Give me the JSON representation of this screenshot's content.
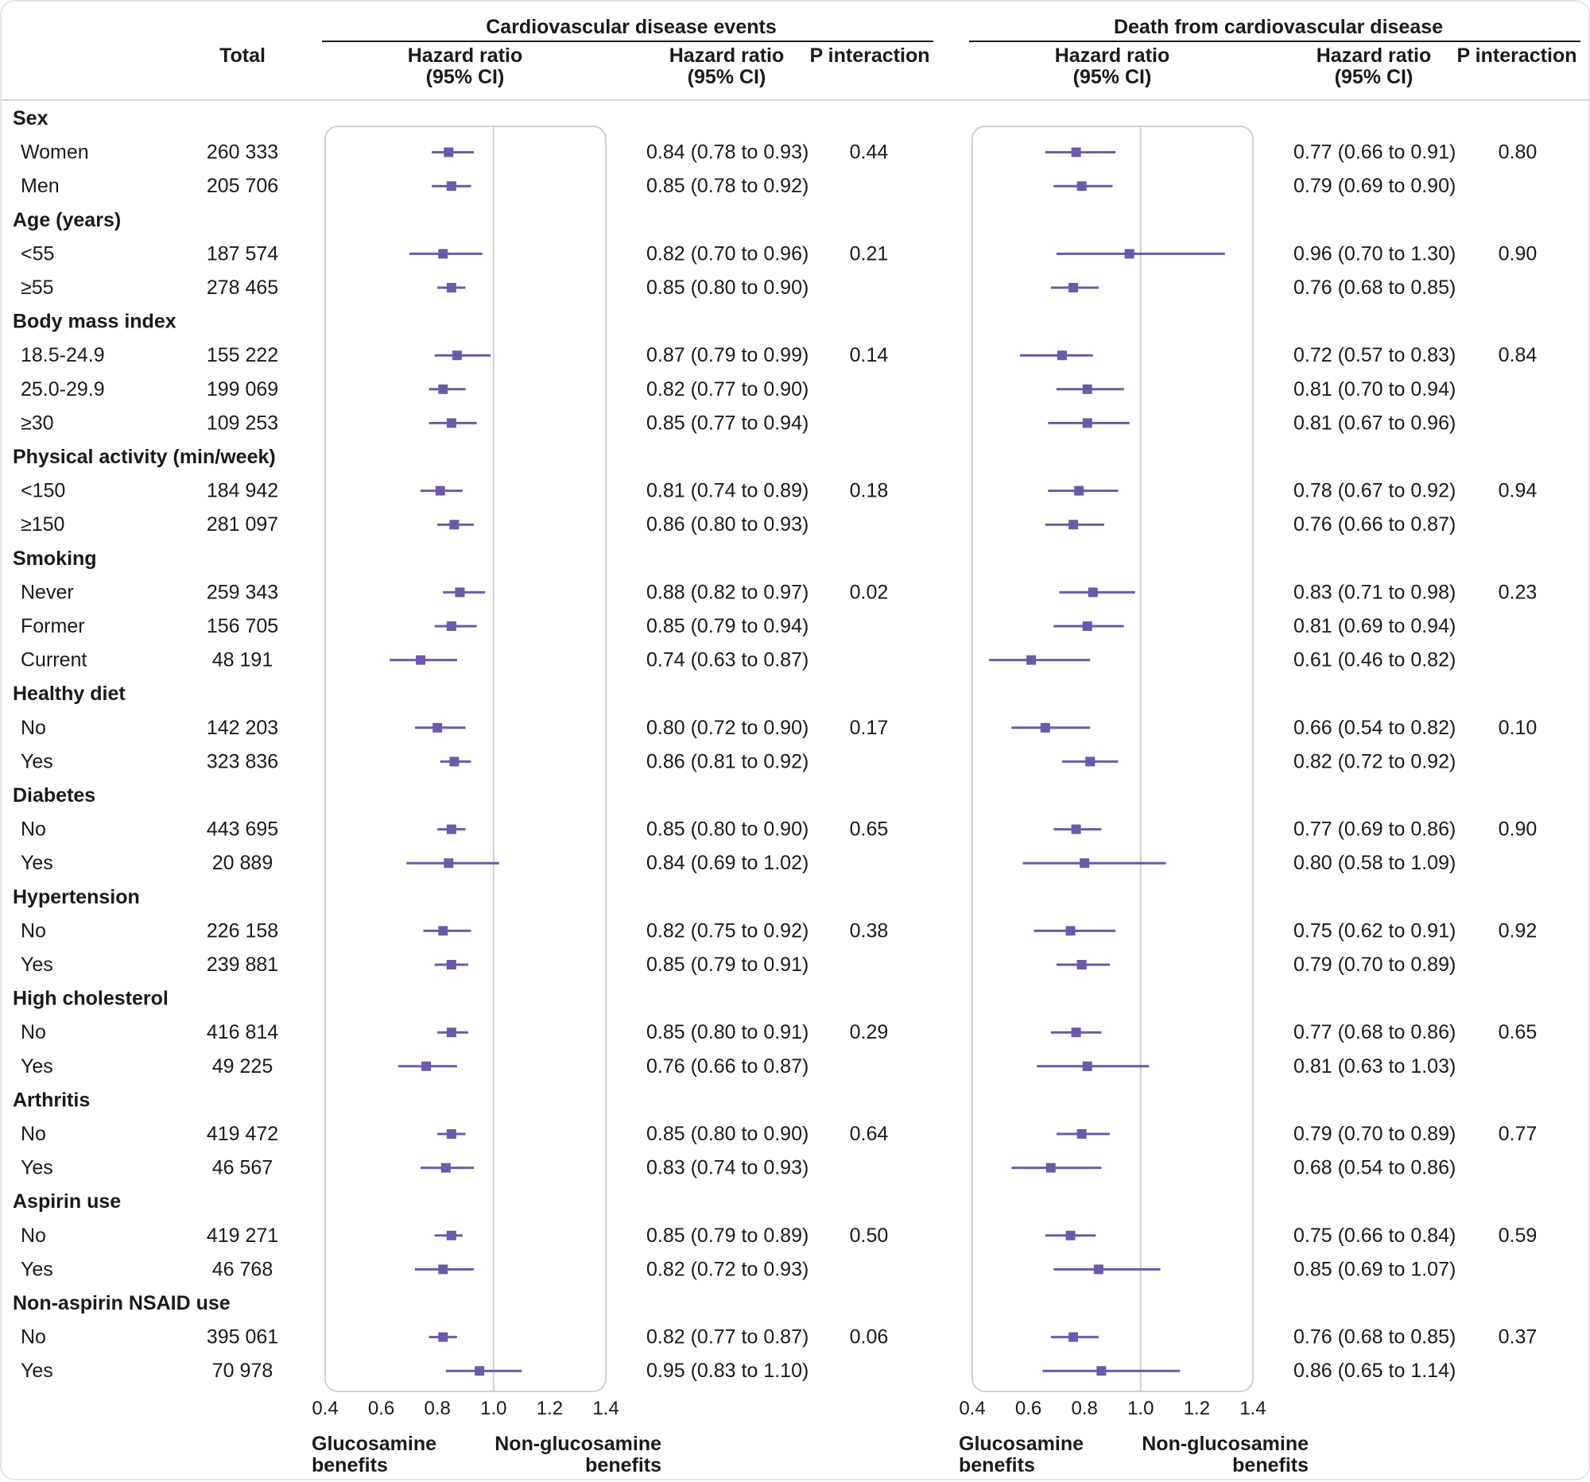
{
  "headers": {
    "total": "Total",
    "hr_plot_label": [
      "Hazard ratio",
      "(95% CI)"
    ],
    "hr_text_label": [
      "Hazard ratio",
      "(95% CI)"
    ],
    "p_label": "P interaction"
  },
  "x_axis_ticks": [
    "0.4",
    "0.6",
    "0.8",
    "1.0",
    "1.2",
    "1.4"
  ],
  "benefit_labels": {
    "left": [
      "Glucosamine",
      "benefits"
    ],
    "right": [
      "Non-glucosamine",
      "benefits"
    ]
  },
  "chart_data": [
    {
      "type": "forest",
      "title": "Cardiovascular disease events",
      "xlim": [
        0.4,
        1.4
      ],
      "reference_line": 1.0,
      "point_color": "#6c5aa8",
      "groups": [
        {
          "name": "Sex",
          "rows": [
            {
              "label": "Women",
              "total": "260 333",
              "hr": 0.84,
              "lo": 0.78,
              "hi": 0.93,
              "text": "0.84 (0.78 to 0.93)",
              "p": "0.44"
            },
            {
              "label": "Men",
              "total": "205 706",
              "hr": 0.85,
              "lo": 0.78,
              "hi": 0.92,
              "text": "0.85 (0.78 to 0.92)",
              "p": ""
            }
          ]
        },
        {
          "name": "Age (years)",
          "rows": [
            {
              "label": "<55",
              "total": "187 574",
              "hr": 0.82,
              "lo": 0.7,
              "hi": 0.96,
              "text": "0.82 (0.70 to 0.96)",
              "p": "0.21"
            },
            {
              "label": "≥55",
              "total": "278 465",
              "hr": 0.85,
              "lo": 0.8,
              "hi": 0.9,
              "text": "0.85 (0.80 to 0.90)",
              "p": ""
            }
          ]
        },
        {
          "name": "Body mass index",
          "rows": [
            {
              "label": "18.5-24.9",
              "total": "155 222",
              "hr": 0.87,
              "lo": 0.79,
              "hi": 0.99,
              "text": "0.87 (0.79 to 0.99)",
              "p": "0.14"
            },
            {
              "label": "25.0-29.9",
              "total": "199 069",
              "hr": 0.82,
              "lo": 0.77,
              "hi": 0.9,
              "text": "0.82 (0.77 to 0.90)",
              "p": ""
            },
            {
              "label": "≥30",
              "total": "109 253",
              "hr": 0.85,
              "lo": 0.77,
              "hi": 0.94,
              "text": "0.85 (0.77 to 0.94)",
              "p": ""
            }
          ]
        },
        {
          "name": "Physical activity (min/week)",
          "rows": [
            {
              "label": "<150",
              "total": "184 942",
              "hr": 0.81,
              "lo": 0.74,
              "hi": 0.89,
              "text": "0.81 (0.74 to 0.89)",
              "p": "0.18"
            },
            {
              "label": "≥150",
              "total": "281 097",
              "hr": 0.86,
              "lo": 0.8,
              "hi": 0.93,
              "text": "0.86 (0.80 to 0.93)",
              "p": ""
            }
          ]
        },
        {
          "name": "Smoking",
          "rows": [
            {
              "label": "Never",
              "total": "259 343",
              "hr": 0.88,
              "lo": 0.82,
              "hi": 0.97,
              "text": "0.88 (0.82 to 0.97)",
              "p": "0.02"
            },
            {
              "label": "Former",
              "total": "156 705",
              "hr": 0.85,
              "lo": 0.79,
              "hi": 0.94,
              "text": "0.85 (0.79 to 0.94)",
              "p": ""
            },
            {
              "label": "Current",
              "total": "48 191",
              "hr": 0.74,
              "lo": 0.63,
              "hi": 0.87,
              "text": "0.74 (0.63 to 0.87)",
              "p": ""
            }
          ]
        },
        {
          "name": "Healthy diet",
          "rows": [
            {
              "label": "No",
              "total": "142 203",
              "hr": 0.8,
              "lo": 0.72,
              "hi": 0.9,
              "text": "0.80 (0.72 to 0.90)",
              "p": "0.17"
            },
            {
              "label": "Yes",
              "total": "323 836",
              "hr": 0.86,
              "lo": 0.81,
              "hi": 0.92,
              "text": "0.86 (0.81 to 0.92)",
              "p": ""
            }
          ]
        },
        {
          "name": "Diabetes",
          "rows": [
            {
              "label": "No",
              "total": "443 695",
              "hr": 0.85,
              "lo": 0.8,
              "hi": 0.9,
              "text": "0.85 (0.80 to 0.90)",
              "p": "0.65"
            },
            {
              "label": "Yes",
              "total": "20 889",
              "hr": 0.84,
              "lo": 0.69,
              "hi": 1.02,
              "text": "0.84 (0.69 to 1.02)",
              "p": ""
            }
          ]
        },
        {
          "name": "Hypertension",
          "rows": [
            {
              "label": "No",
              "total": "226 158",
              "hr": 0.82,
              "lo": 0.75,
              "hi": 0.92,
              "text": "0.82 (0.75 to 0.92)",
              "p": "0.38"
            },
            {
              "label": "Yes",
              "total": "239 881",
              "hr": 0.85,
              "lo": 0.79,
              "hi": 0.91,
              "text": "0.85 (0.79 to 0.91)",
              "p": ""
            }
          ]
        },
        {
          "name": "High cholesterol",
          "rows": [
            {
              "label": "No",
              "total": "416 814",
              "hr": 0.85,
              "lo": 0.8,
              "hi": 0.91,
              "text": "0.85 (0.80 to 0.91)",
              "p": "0.29"
            },
            {
              "label": "Yes",
              "total": "49 225",
              "hr": 0.76,
              "lo": 0.66,
              "hi": 0.87,
              "text": "0.76 (0.66 to 0.87)",
              "p": ""
            }
          ]
        },
        {
          "name": "Arthritis",
          "rows": [
            {
              "label": "No",
              "total": "419 472",
              "hr": 0.85,
              "lo": 0.8,
              "hi": 0.9,
              "text": "0.85 (0.80 to 0.90)",
              "p": "0.64"
            },
            {
              "label": "Yes",
              "total": "46 567",
              "hr": 0.83,
              "lo": 0.74,
              "hi": 0.93,
              "text": "0.83 (0.74 to 0.93)",
              "p": ""
            }
          ]
        },
        {
          "name": "Aspirin use",
          "rows": [
            {
              "label": "No",
              "total": "419 271",
              "hr": 0.85,
              "lo": 0.79,
              "hi": 0.89,
              "text": "0.85 (0.79 to 0.89)",
              "p": "0.50"
            },
            {
              "label": "Yes",
              "total": "46 768",
              "hr": 0.82,
              "lo": 0.72,
              "hi": 0.93,
              "text": "0.82 (0.72 to 0.93)",
              "p": ""
            }
          ]
        },
        {
          "name": "Non-aspirin NSAID use",
          "rows": [
            {
              "label": "No",
              "total": "395 061",
              "hr": 0.82,
              "lo": 0.77,
              "hi": 0.87,
              "text": "0.82 (0.77 to 0.87)",
              "p": "0.06"
            },
            {
              "label": "Yes",
              "total": "70 978",
              "hr": 0.95,
              "lo": 0.83,
              "hi": 1.1,
              "text": "0.95 (0.83 to 1.10)",
              "p": ""
            }
          ]
        }
      ]
    },
    {
      "type": "forest",
      "title": "Death from cardiovascular disease",
      "xlim": [
        0.4,
        1.4
      ],
      "reference_line": 1.0,
      "point_color": "#6c5aa8",
      "groups": [
        {
          "name": "Sex",
          "rows": [
            {
              "hr": 0.77,
              "lo": 0.66,
              "hi": 0.91,
              "text": "0.77 (0.66 to 0.91)",
              "p": "0.80"
            },
            {
              "hr": 0.79,
              "lo": 0.69,
              "hi": 0.9,
              "text": "0.79 (0.69 to 0.90)",
              "p": ""
            }
          ]
        },
        {
          "name": "Age (years)",
          "rows": [
            {
              "hr": 0.96,
              "lo": 0.7,
              "hi": 1.3,
              "text": "0.96 (0.70 to 1.30)",
              "p": "0.90"
            },
            {
              "hr": 0.76,
              "lo": 0.68,
              "hi": 0.85,
              "text": "0.76 (0.68 to 0.85)",
              "p": ""
            }
          ]
        },
        {
          "name": "Body mass index",
          "rows": [
            {
              "hr": 0.72,
              "lo": 0.57,
              "hi": 0.83,
              "text": "0.72 (0.57 to 0.83)",
              "p": "0.84"
            },
            {
              "hr": 0.81,
              "lo": 0.7,
              "hi": 0.94,
              "text": "0.81 (0.70 to 0.94)",
              "p": ""
            },
            {
              "hr": 0.81,
              "lo": 0.67,
              "hi": 0.96,
              "text": "0.81 (0.67 to 0.96)",
              "p": ""
            }
          ]
        },
        {
          "name": "Physical activity (min/week)",
          "rows": [
            {
              "hr": 0.78,
              "lo": 0.67,
              "hi": 0.92,
              "text": "0.78 (0.67 to 0.92)",
              "p": "0.94"
            },
            {
              "hr": 0.76,
              "lo": 0.66,
              "hi": 0.87,
              "text": "0.76 (0.66 to 0.87)",
              "p": ""
            }
          ]
        },
        {
          "name": "Smoking",
          "rows": [
            {
              "hr": 0.83,
              "lo": 0.71,
              "hi": 0.98,
              "text": "0.83 (0.71 to 0.98)",
              "p": "0.23"
            },
            {
              "hr": 0.81,
              "lo": 0.69,
              "hi": 0.94,
              "text": "0.81 (0.69 to 0.94)",
              "p": ""
            },
            {
              "hr": 0.61,
              "lo": 0.46,
              "hi": 0.82,
              "text": "0.61 (0.46 to 0.82)",
              "p": ""
            }
          ]
        },
        {
          "name": "Healthy diet",
          "rows": [
            {
              "hr": 0.66,
              "lo": 0.54,
              "hi": 0.82,
              "text": "0.66 (0.54 to 0.82)",
              "p": "0.10"
            },
            {
              "hr": 0.82,
              "lo": 0.72,
              "hi": 0.92,
              "text": "0.82 (0.72 to 0.92)",
              "p": ""
            }
          ]
        },
        {
          "name": "Diabetes",
          "rows": [
            {
              "hr": 0.77,
              "lo": 0.69,
              "hi": 0.86,
              "text": "0.77 (0.69 to 0.86)",
              "p": "0.90"
            },
            {
              "hr": 0.8,
              "lo": 0.58,
              "hi": 1.09,
              "text": "0.80 (0.58 to 1.09)",
              "p": ""
            }
          ]
        },
        {
          "name": "Hypertension",
          "rows": [
            {
              "hr": 0.75,
              "lo": 0.62,
              "hi": 0.91,
              "text": "0.75 (0.62 to 0.91)",
              "p": "0.92"
            },
            {
              "hr": 0.79,
              "lo": 0.7,
              "hi": 0.89,
              "text": "0.79 (0.70 to 0.89)",
              "p": ""
            }
          ]
        },
        {
          "name": "High cholesterol",
          "rows": [
            {
              "hr": 0.77,
              "lo": 0.68,
              "hi": 0.86,
              "text": "0.77 (0.68 to 0.86)",
              "p": "0.65"
            },
            {
              "hr": 0.81,
              "lo": 0.63,
              "hi": 1.03,
              "text": "0.81 (0.63 to 1.03)",
              "p": ""
            }
          ]
        },
        {
          "name": "Arthritis",
          "rows": [
            {
              "hr": 0.79,
              "lo": 0.7,
              "hi": 0.89,
              "text": "0.79 (0.70 to 0.89)",
              "p": "0.77"
            },
            {
              "hr": 0.68,
              "lo": 0.54,
              "hi": 0.86,
              "text": "0.68 (0.54 to 0.86)",
              "p": ""
            }
          ]
        },
        {
          "name": "Aspirin use",
          "rows": [
            {
              "hr": 0.75,
              "lo": 0.66,
              "hi": 0.84,
              "text": "0.75 (0.66 to 0.84)",
              "p": "0.59"
            },
            {
              "hr": 0.85,
              "lo": 0.69,
              "hi": 1.07,
              "text": "0.85 (0.69 to 1.07)",
              "p": ""
            }
          ]
        },
        {
          "name": "Non-aspirin NSAID use",
          "rows": [
            {
              "hr": 0.76,
              "lo": 0.68,
              "hi": 0.85,
              "text": "0.76 (0.68 to 0.85)",
              "p": "0.37"
            },
            {
              "hr": 0.86,
              "lo": 0.65,
              "hi": 1.14,
              "text": "0.86 (0.65 to 1.14)",
              "p": ""
            }
          ]
        }
      ]
    }
  ]
}
